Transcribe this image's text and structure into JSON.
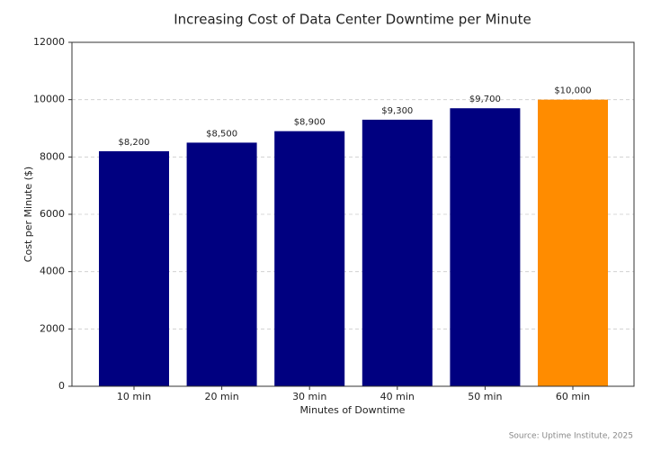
{
  "chart_data": {
    "type": "bar",
    "title": "Increasing Cost of Data Center Downtime per Minute",
    "x_label": "Minutes of Downtime",
    "y_label": "Cost per Minute ($)",
    "categories": [
      "10 min",
      "20 min",
      "30 min",
      "40 min",
      "50 min",
      "60 min"
    ],
    "values": [
      8200,
      8500,
      8900,
      9300,
      9700,
      10000
    ],
    "value_labels": [
      "$8,200",
      "$8,500",
      "$8,900",
      "$9,300",
      "$9,700",
      "$10,000"
    ],
    "colors": [
      "#000080",
      "#000080",
      "#000080",
      "#000080",
      "#000080",
      "#ff8c00"
    ],
    "ylim": [
      0,
      12000
    ],
    "yticks": [
      0,
      2000,
      4000,
      6000,
      8000,
      10000,
      12000
    ],
    "grid": true,
    "source": "Source: Uptime Institute, 2025"
  }
}
